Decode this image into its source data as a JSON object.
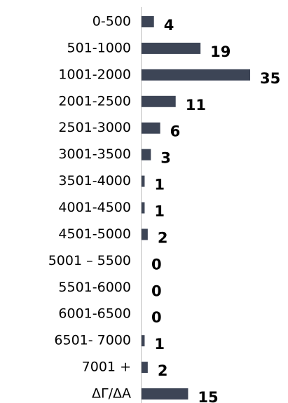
{
  "chart_data": {
    "type": "barh",
    "categories": [
      "0-500",
      "501-1000",
      "1001-2000",
      "2001-2500",
      "2501-3000",
      "3001-3500",
      "3501-4000",
      "4001-4500",
      "4501-5000",
      "5001 – 5500",
      "5501-6000",
      "6001-6500",
      "6501- 7000",
      "7001 +",
      "ΔΓ/ΔΑ"
    ],
    "values": [
      4,
      19,
      35,
      11,
      6,
      3,
      1,
      1,
      2,
      0,
      0,
      0,
      1,
      2,
      15
    ],
    "color": "#3d4556",
    "xlim": [
      0,
      35
    ]
  }
}
